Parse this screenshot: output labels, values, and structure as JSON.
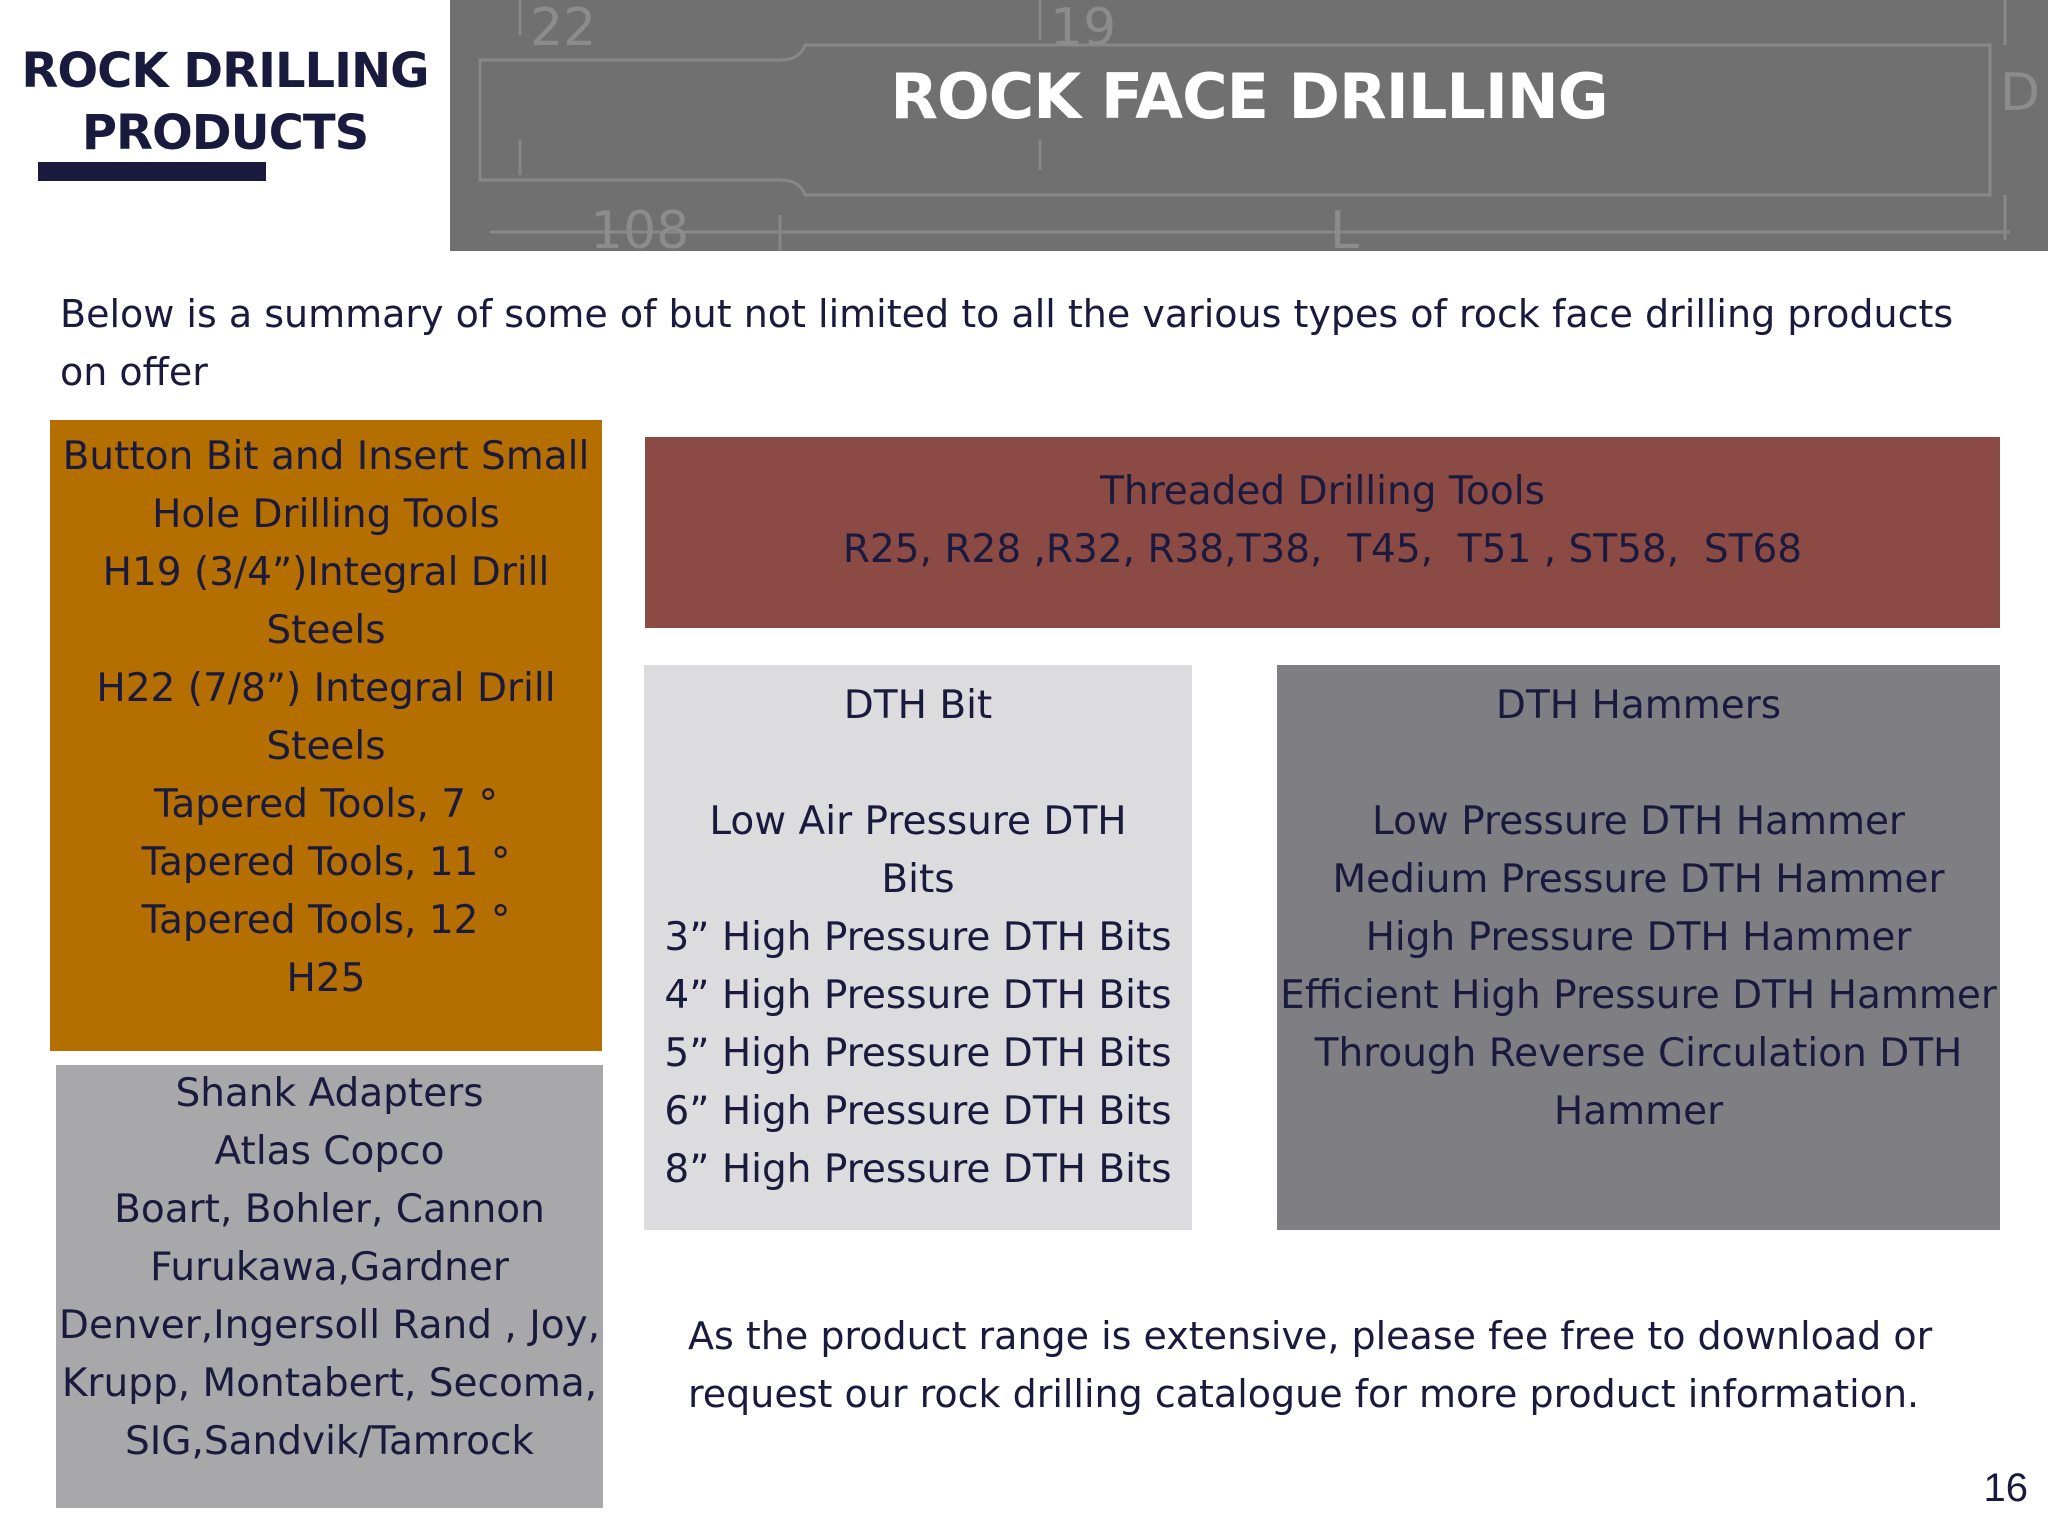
{
  "brand": {
    "title_lines": [
      "ROCK DRILLING",
      "PRODUCTS"
    ]
  },
  "header": {
    "title": "ROCK FACE DRILLING",
    "diagram_labels": [
      "22",
      "19",
      "108",
      "L",
      "D"
    ]
  },
  "intro": "Below is a summary of some of but not limited to all the various types of rock face drilling products on offer",
  "boxes": {
    "button_bit": {
      "lines": [
        "Button Bit and Insert Small",
        "Hole Drilling Tools",
        "H19 (3/4”)Integral Drill",
        "Steels",
        "H22 (7/8”) Integral Drill",
        "Steels",
        "Tapered Tools, 7 °",
        "Tapered Tools, 11 °",
        "Tapered Tools, 12 °",
        "H25"
      ]
    },
    "shank_adapters": {
      "lines": [
        "Shank Adapters",
        "Atlas Copco",
        "Boart, Bohler, Cannon",
        "Furukawa,Gardner",
        "Denver,Ingersoll Rand , Joy,",
        "Krupp, Montabert, Secoma,",
        "SIG,Sandvik/Tamrock"
      ]
    },
    "threaded": {
      "lines": [
        "Threaded Drilling Tools",
        "R25, R28 ,R32, R38,T38,  T45,  T51 , ST58,  ST68"
      ]
    },
    "dth_bit": {
      "lines": [
        "DTH Bit",
        "",
        "Low Air Pressure DTH",
        "Bits",
        "3” High Pressure DTH Bits",
        "4” High Pressure DTH Bits",
        "5” High Pressure DTH Bits",
        "6” High Pressure DTH Bits",
        "8” High Pressure DTH Bits"
      ]
    },
    "dth_hammers": {
      "lines": [
        "DTH Hammers",
        "",
        "Low Pressure DTH Hammer",
        "Medium Pressure DTH Hammer",
        "High Pressure DTH Hammer",
        "Efficient High Pressure DTH Hammer",
        "Through Reverse Circulation DTH",
        "Hammer"
      ]
    }
  },
  "closing": "As the product range is extensive, please fee free to download or request our rock drilling catalogue for more product information.",
  "page_number": "16",
  "colors": {
    "navy": "#1a1a3e",
    "orange": "#b56f00",
    "brick": "#8c4a44",
    "light_gray": "#dcdcde",
    "mid_gray": "#a8a8aa",
    "dark_gray": "#7f7e83",
    "header_gray": "#707070"
  }
}
